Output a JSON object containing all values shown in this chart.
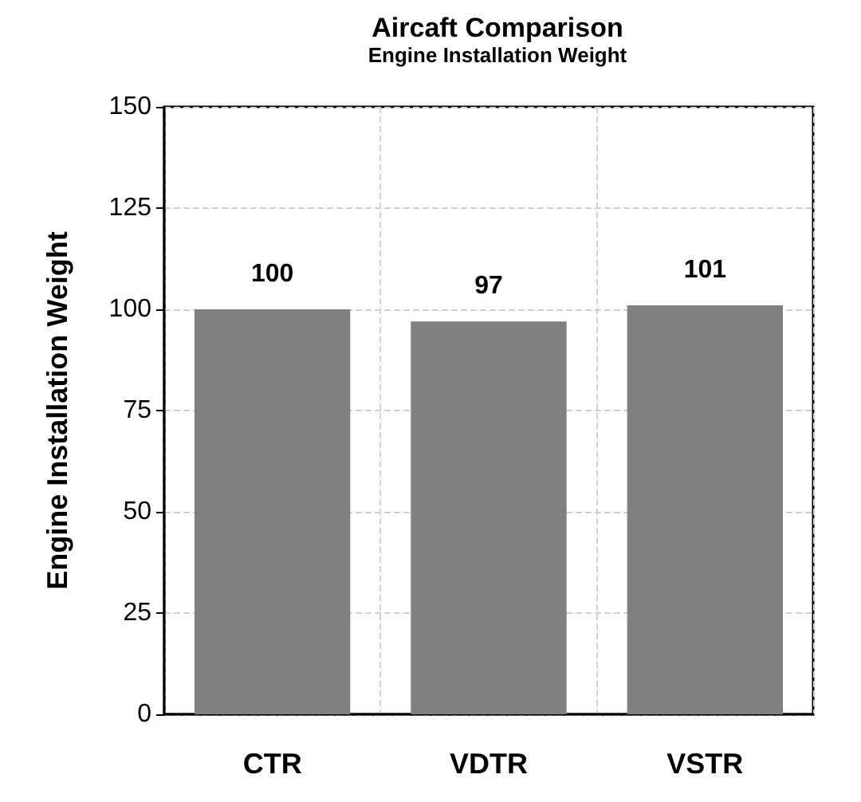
{
  "chart_data": {
    "type": "bar",
    "title": "Aircaft Comparison",
    "subtitle": "Engine Installation Weight",
    "ylabel": "Engine Installation Weight",
    "categories": [
      "CTR",
      "VDTR",
      "VSTR"
    ],
    "values": [
      100,
      97,
      101
    ],
    "color": "#808080",
    "ylim": [
      0,
      150
    ],
    "yticks": [
      0,
      25,
      50,
      75,
      100,
      125,
      150
    ],
    "grid": true,
    "data_labels": true
  }
}
